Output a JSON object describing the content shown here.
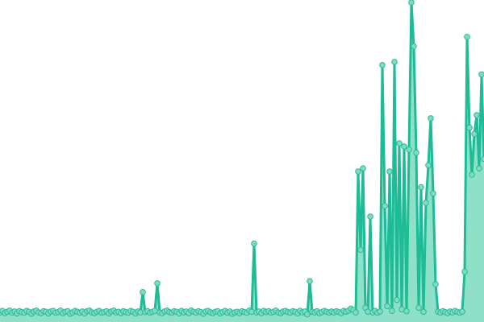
{
  "chart_data": {
    "type": "area",
    "title": "",
    "xlabel": "",
    "ylabel": "",
    "grid": false,
    "axes_visible": false,
    "markers": true,
    "ylim": [
      0,
      100
    ],
    "colors": {
      "line": "#1dbb96",
      "fill": "#8ee0c9",
      "marker_fill": "#7fdcc3",
      "marker_stroke": "#2ab996"
    },
    "series": [
      {
        "values": [
          1,
          1.5,
          0.8,
          1.2,
          1.6,
          0.9,
          1.3,
          0.7,
          1.4,
          1.1,
          0.9,
          1.5,
          1.2,
          0.6,
          1.3,
          1.6,
          1.0,
          0.8,
          1.4,
          1.2,
          0.7,
          1.3,
          1.5,
          0.9,
          1.1,
          1.6,
          0.8,
          1.2,
          1.4,
          0.6,
          1.0,
          1.5,
          1.2,
          0.9,
          1.3,
          0.7,
          1.4,
          1.6,
          1.0,
          0.8,
          1.2,
          1.5,
          0.9,
          1.1,
          1.4,
          0.7,
          1.3,
          1.6,
          1.0,
          1.2,
          0.8,
          1.4,
          1.1,
          0.9,
          1.5,
          1.2,
          0.7,
          1.3,
          1.0,
          7.5,
          1.1,
          1.4,
          0.9,
          1.2,
          1.5,
          10.3,
          1.0,
          0.8,
          1.3,
          1.6,
          1.1,
          0.9,
          1.4,
          1.2,
          0.7,
          1.5,
          1.0,
          1.3,
          0.8,
          1.6,
          1.2,
          0.9,
          1.4,
          1.1,
          0.6,
          1.3,
          1.5,
          1.0,
          0.8,
          1.2,
          1.4,
          0.7,
          1.1,
          1.5,
          0.9,
          1.3,
          0.6,
          1.0,
          1.2,
          0.8,
          1.4,
          1.1,
          0.9,
          1.6,
          1.2,
          23,
          1.0,
          1.3,
          0.8,
          1.5,
          1.1,
          1.4,
          0.9,
          1.2,
          1.6,
          1.0,
          0.8,
          1.3,
          1.5,
          1.1,
          0.9,
          1.4,
          1.2,
          0.7,
          1.5,
          1.0,
          1.3,
          0.4,
          11,
          1.2,
          1.0,
          1.4,
          0.8,
          1.1,
          1.5,
          1.2,
          0.9,
          1.3,
          1.0,
          1.4,
          1.1,
          0.8,
          1.5,
          1.2,
          1.6,
          2.2,
          1.8,
          1.0,
          46,
          21,
          47,
          2.5,
          1.2,
          31.6,
          1.0,
          1.5,
          0.9,
          1.3,
          80,
          35,
          3,
          46,
          1.5,
          81,
          5,
          55,
          2,
          54,
          1.4,
          53,
          100,
          86,
          52,
          2.5,
          41,
          1.2,
          36,
          48,
          63,
          39,
          10,
          1.2,
          0.9,
          1.4,
          1.1,
          0.8,
          1.3,
          1.0,
          1.5,
          1.2,
          0.9,
          1.3,
          14,
          89,
          60,
          45,
          58,
          64,
          47,
          77,
          50
        ]
      }
    ]
  }
}
